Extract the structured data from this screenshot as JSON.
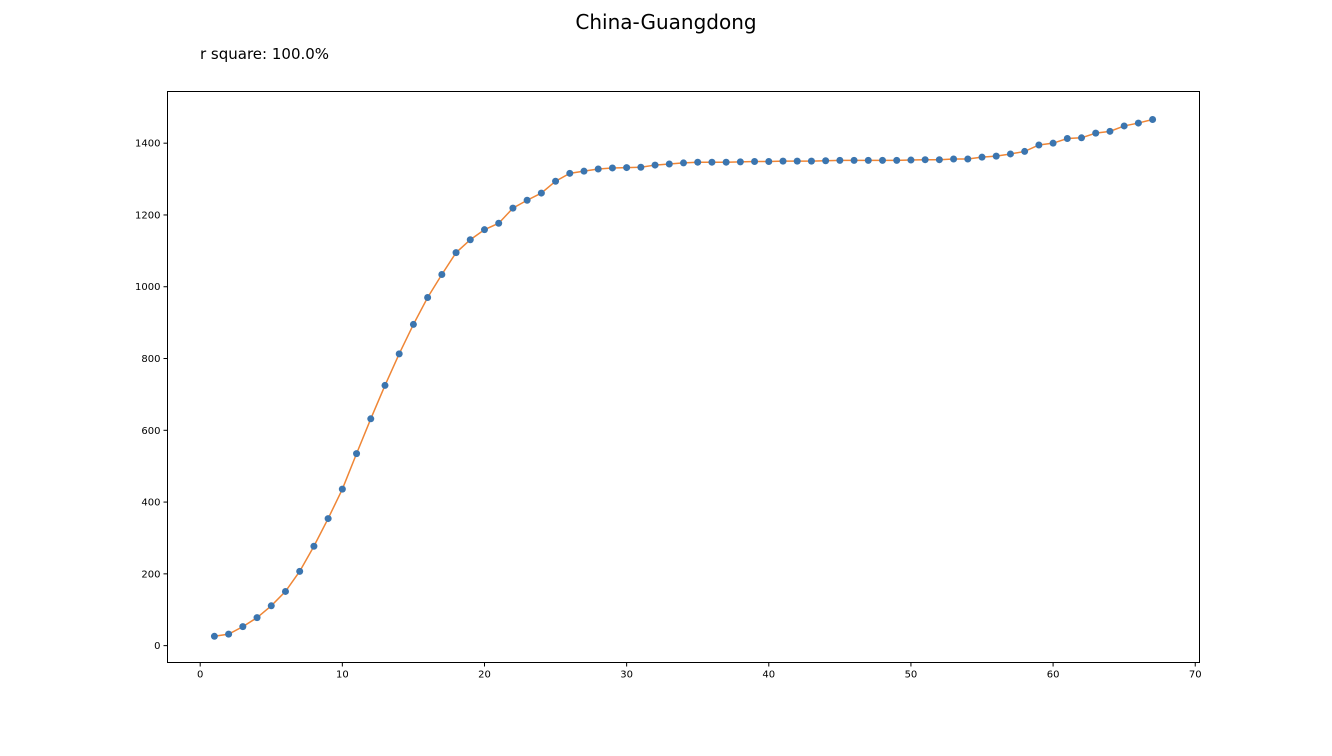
{
  "chart_data": {
    "type": "line",
    "title": "China-Guangdong",
    "subtitle": "r square: 100.0%",
    "xlabel": "",
    "ylabel": "",
    "xlim": [
      -2.3,
      70.3
    ],
    "ylim": [
      -47,
      1544
    ],
    "xticks": [
      0,
      10,
      20,
      30,
      40,
      50,
      60,
      70
    ],
    "yticks": [
      0,
      200,
      400,
      600,
      800,
      1000,
      1200,
      1400
    ],
    "grid": false,
    "legend": "none",
    "colors": {
      "points": "#3b75af",
      "line": "#ef8636"
    },
    "x": [
      1,
      2,
      3,
      4,
      5,
      6,
      7,
      8,
      9,
      10,
      11,
      12,
      13,
      14,
      15,
      16,
      17,
      18,
      19,
      20,
      21,
      22,
      23,
      24,
      25,
      26,
      27,
      28,
      29,
      30,
      31,
      32,
      33,
      34,
      35,
      36,
      37,
      38,
      39,
      40,
      41,
      42,
      43,
      44,
      45,
      46,
      47,
      48,
      49,
      50,
      51,
      52,
      53,
      54,
      55,
      56,
      57,
      58,
      59,
      60,
      61,
      62,
      63,
      64,
      65,
      66,
      67
    ],
    "series": [
      {
        "marker": "circle",
        "values": [
          26,
          32,
          53,
          78,
          111,
          151,
          207,
          277,
          354,
          436,
          535,
          632,
          725,
          813,
          895,
          970,
          1034,
          1095,
          1131,
          1159,
          1177,
          1219,
          1241,
          1261,
          1294,
          1316,
          1322,
          1328,
          1331,
          1332,
          1333,
          1339,
          1342,
          1345,
          1347,
          1347,
          1347,
          1348,
          1349,
          1349,
          1350,
          1350,
          1350,
          1351,
          1352,
          1352,
          1352,
          1352,
          1352,
          1353,
          1354,
          1354,
          1356,
          1356,
          1361,
          1364,
          1370,
          1377,
          1395,
          1400,
          1413,
          1415,
          1428,
          1433,
          1448,
          1456,
          1466
        ]
      },
      {
        "style": "line",
        "values": [
          26,
          32,
          53,
          78,
          111,
          151,
          207,
          277,
          354,
          436,
          535,
          632,
          725,
          813,
          895,
          970,
          1034,
          1095,
          1131,
          1159,
          1177,
          1219,
          1241,
          1261,
          1294,
          1316,
          1322,
          1328,
          1331,
          1332,
          1333,
          1339,
          1342,
          1345,
          1347,
          1347,
          1347,
          1348,
          1349,
          1349,
          1350,
          1350,
          1350,
          1351,
          1352,
          1352,
          1352,
          1352,
          1352,
          1353,
          1354,
          1354,
          1356,
          1356,
          1361,
          1364,
          1370,
          1377,
          1395,
          1400,
          1413,
          1415,
          1428,
          1433,
          1448,
          1456,
          1466
        ]
      }
    ]
  }
}
